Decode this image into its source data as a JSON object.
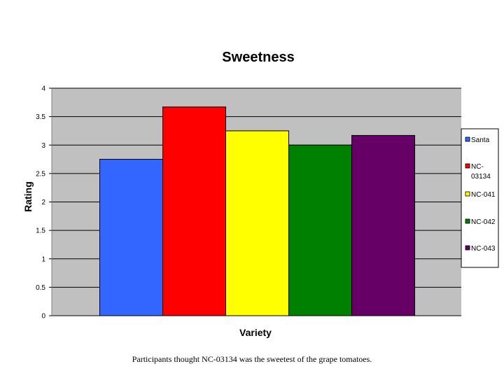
{
  "chart_data": {
    "type": "bar",
    "title": "Sweetness",
    "xlabel": "Variety",
    "ylabel": "Rating",
    "ylim": [
      0,
      4
    ],
    "yticks": [
      "0",
      "0.5",
      "1",
      "1.5",
      "2",
      "2.5",
      "3",
      "3.5",
      "4"
    ],
    "grid": true,
    "legend_position": "right",
    "plot_background": "#C0C0C0",
    "series": [
      {
        "name": "Santa",
        "value": 2.75,
        "color": "#3366FF"
      },
      {
        "name": "NC-03134",
        "value": 3.67,
        "color": "#FF0000"
      },
      {
        "name": "NC-041",
        "value": 3.25,
        "color": "#FFFF00"
      },
      {
        "name": "NC-042",
        "value": 3.0,
        "color": "#008000"
      },
      {
        "name": "NC-043",
        "value": 3.17,
        "color": "#660066"
      }
    ]
  },
  "caption": "Participants thought NC-03134 was the sweetest of the grape tomatoes."
}
